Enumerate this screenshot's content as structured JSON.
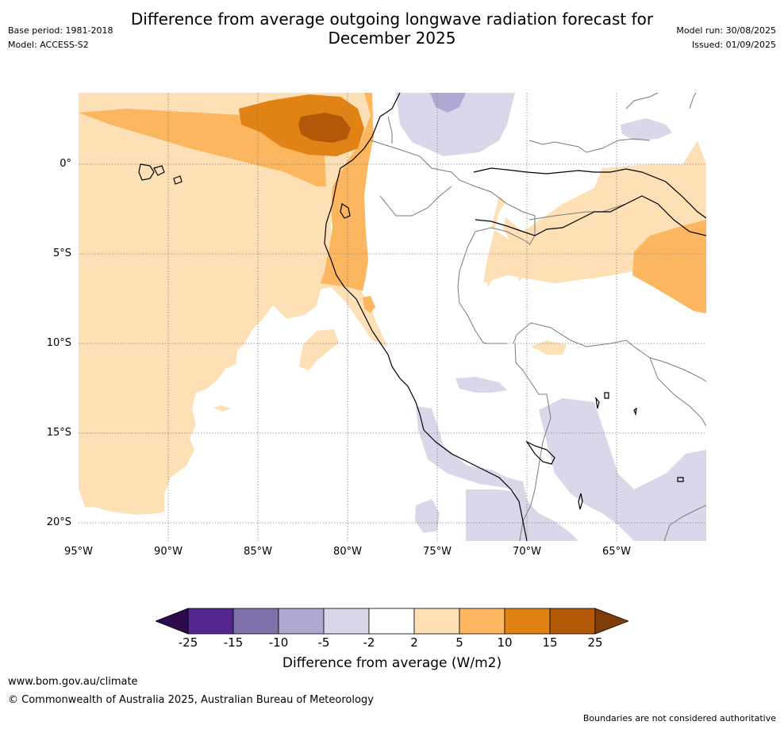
{
  "header": {
    "title_line1": "Difference from average outgoing longwave radiation forecast for",
    "title_line2": "December 2025",
    "base_period": "Base period: 1981-2018",
    "model": "Model: ACCESS-S2",
    "model_run": "Model run: 30/08/2025",
    "issued": "Issued: 01/09/2025"
  },
  "map": {
    "lat_labels": [
      "0°",
      "5°S",
      "10°S",
      "15°S",
      "20°S"
    ],
    "lon_labels": [
      "95°W",
      "90°W",
      "85°W",
      "80°W",
      "75°W",
      "70°W",
      "65°W"
    ],
    "colors": {
      "neg25": "#2d0a4e",
      "neg15": "#54278f",
      "neg10": "#8070aa",
      "neg5": "#b0a8d2",
      "neg2": "#d8d8ea",
      "zero": "#ffffff",
      "pos2": "#fde0b6",
      "pos5": "#fbb65f",
      "pos10": "#e08214",
      "pos15": "#b35806",
      "pos25": "#7f3b08"
    }
  },
  "colorbar": {
    "ticks": [
      "-25",
      "-15",
      "-10",
      "-5",
      "-2",
      "2",
      "5",
      "10",
      "15",
      "25"
    ],
    "label": "Difference from average (W/m2)"
  },
  "footer": {
    "url": "www.bom.gov.au/climate",
    "copyright": "© Commonwealth of Australia 2025, Australian Bureau of Meteorology",
    "disclaimer": "Boundaries are not considered authoritative"
  }
}
